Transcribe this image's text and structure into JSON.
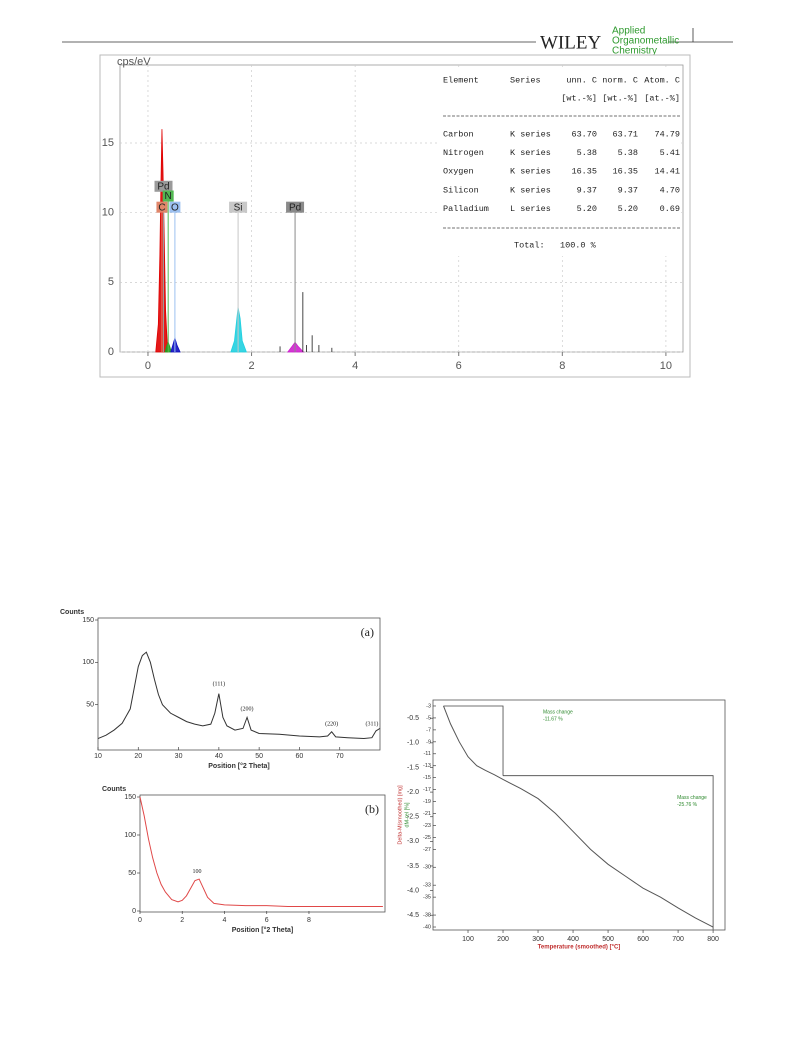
{
  "header": {
    "publisher": "WILEY",
    "journal": [
      "Applied",
      "Organometallic",
      "Chemistry"
    ]
  },
  "chart_data": [
    {
      "type": "spectrum",
      "ylabel": "cps/eV",
      "xlim": [
        -0.54,
        10.33
      ],
      "ylim": [
        0,
        20.6
      ],
      "xticks": [
        0,
        2,
        4,
        6,
        8,
        10
      ],
      "yticks": [
        0,
        5,
        10,
        15
      ],
      "grid": true,
      "series": [
        {
          "color": "#e00000",
          "x": [
            0.15,
            0.2,
            0.23,
            0.25,
            0.27,
            0.29,
            0.31,
            0.34,
            0.38
          ],
          "values": [
            0,
            2,
            7,
            12,
            16,
            13,
            9,
            3,
            0
          ]
        },
        {
          "color": "#1fa01f",
          "x": [
            0.33,
            0.36,
            0.39,
            0.42,
            0.45
          ],
          "values": [
            0,
            0.4,
            0.7,
            0.4,
            0
          ]
        },
        {
          "color": "#1010c0",
          "x": [
            0.44,
            0.48,
            0.52,
            0.56,
            0.62
          ],
          "values": [
            0,
            0.5,
            1,
            0.5,
            0
          ]
        },
        {
          "color": "#20d0e0",
          "x": [
            1.6,
            1.67,
            1.71,
            1.74,
            1.78,
            1.82,
            1.9
          ],
          "values": [
            0,
            0.8,
            2.2,
            3.2,
            2.4,
            0.8,
            0
          ]
        },
        {
          "color": "#d020d0",
          "x": [
            2.7,
            2.78,
            2.84,
            2.9,
            3.0
          ],
          "values": [
            0,
            0.4,
            0.7,
            0.4,
            0
          ]
        }
      ],
      "line_markers": [
        {
          "label": "Pd",
          "x": 0.3,
          "y": 11.5,
          "color": "#9a9a9a"
        },
        {
          "label": "N",
          "x": 0.39,
          "y": 10.8,
          "color": "#52b852"
        },
        {
          "label": "C",
          "x": 0.27,
          "y": 10,
          "color": "#e0866a"
        },
        {
          "label": "O",
          "x": 0.52,
          "y": 10,
          "color": "#9cc0f0"
        },
        {
          "label": "Si",
          "x": 1.74,
          "y": 10,
          "color": "#c8c8c8"
        },
        {
          "label": "Pd",
          "x": 2.84,
          "y": 10,
          "color": "#8a8a8a"
        }
      ],
      "spikes": {
        "x": [
          2.55,
          2.99,
          3.06,
          3.17,
          3.3,
          3.55
        ],
        "values": [
          0.4,
          4.3,
          0.5,
          1.2,
          0.5,
          0.3
        ]
      },
      "table": {
        "header": [
          "Element",
          "Series",
          "unn. C",
          "norm. C",
          "Atom. C"
        ],
        "units": [
          "[wt.-%]",
          "[wt.-%]",
          "[at.-%]"
        ],
        "rows": [
          [
            "Carbon",
            "K series",
            "63.70",
            "63.71",
            "74.79"
          ],
          [
            "Nitrogen",
            "K series",
            "5.38",
            "5.38",
            "5.41"
          ],
          [
            "Oxygen",
            "K series",
            "16.35",
            "16.35",
            "14.41"
          ],
          [
            "Silicon",
            "K series",
            "9.37",
            "9.37",
            "4.70"
          ],
          [
            "Palladium",
            "L series",
            "5.20",
            "5.20",
            "0.69"
          ]
        ],
        "total_label": "Total:",
        "total": "100.0 %"
      }
    },
    {
      "type": "line",
      "panel": "(a)",
      "ylabel": "Counts",
      "xlabel": "Position [°2 Theta]",
      "xlim": [
        10,
        80
      ],
      "ylim": [
        0,
        150
      ],
      "xticks": [
        10,
        20,
        30,
        40,
        50,
        60,
        70
      ],
      "yticks": [
        50,
        100,
        150
      ],
      "color": "#333333",
      "x": [
        10,
        12,
        14,
        16,
        18,
        19,
        20,
        21,
        22,
        23,
        24,
        25,
        26,
        28,
        30,
        32,
        34,
        36,
        38,
        39,
        40,
        41,
        42,
        44,
        46,
        47,
        48,
        50,
        55,
        60,
        65,
        67,
        68,
        69,
        72,
        76,
        78,
        79,
        80
      ],
      "values": [
        10,
        14,
        20,
        28,
        45,
        70,
        95,
        108,
        112,
        100,
        80,
        62,
        50,
        40,
        35,
        30,
        27,
        25,
        27,
        40,
        63,
        35,
        25,
        20,
        22,
        35,
        20,
        16,
        15,
        13,
        12,
        13,
        18,
        12,
        11,
        10,
        11,
        19,
        22
      ],
      "annotations": [
        {
          "label": "(111)",
          "x": 40,
          "y": 74
        },
        {
          "label": "(200)",
          "x": 47,
          "y": 45
        },
        {
          "label": "(220)",
          "x": 68,
          "y": 27
        },
        {
          "label": "(311)",
          "x": 78,
          "y": 27
        }
      ]
    },
    {
      "type": "line",
      "panel": "(b)",
      "ylabel": "Counts",
      "xlabel": "Position [°2 Theta]",
      "xlim": [
        0,
        11.6
      ],
      "ylim": [
        0,
        150
      ],
      "xticks": [
        0,
        2,
        4,
        6,
        8
      ],
      "yticks": [
        0,
        50,
        100,
        150
      ],
      "color": "#e04848",
      "x": [
        0,
        0.2,
        0.4,
        0.6,
        0.8,
        1,
        1.2,
        1.5,
        1.8,
        2,
        2.2,
        2.4,
        2.6,
        2.8,
        3,
        3.2,
        3.5,
        4,
        5,
        6,
        7,
        8,
        9,
        10,
        11.5
      ],
      "values": [
        150,
        125,
        95,
        70,
        50,
        35,
        25,
        15,
        12,
        14,
        20,
        30,
        40,
        42,
        30,
        18,
        10,
        8,
        7,
        7,
        6,
        6,
        6,
        6,
        6
      ],
      "annotations": [
        {
          "label": "100",
          "x": 2.7,
          "y": 52
        }
      ]
    },
    {
      "type": "line",
      "ylabel": "Delta-M(smoothed) [mg]",
      "y2label": "dM-rel [%]",
      "xlabel": "Temperature (smoothed) [°C]",
      "xlim": [
        0,
        834
      ],
      "ylim": [
        -4.8,
        -0.13
      ],
      "y2lim": [
        -40.5,
        -2
      ],
      "xticks": [
        100,
        200,
        300,
        400,
        500,
        600,
        700,
        800
      ],
      "yticks": [
        -0.5,
        {
          "value": -1,
          "label": "-1.0"
        },
        -1.5,
        {
          "value": -2,
          "label": "-2.0"
        },
        -2.5,
        {
          "value": -3,
          "label": "-3.0"
        },
        -3.5,
        {
          "value": -4,
          "label": "-4.0"
        },
        -4.5
      ],
      "y2ticks": [
        -3,
        -5,
        -7,
        -9,
        -11,
        -13,
        -15,
        -17,
        -19,
        -21,
        -23,
        -25,
        -27,
        -30,
        -33,
        -35,
        -38,
        -40
      ],
      "series": [
        {
          "color": "#555555",
          "axis": "y2",
          "x": [
            30,
            50,
            75,
            100,
            125,
            150,
            175,
            200,
            250,
            300,
            350,
            400,
            450,
            500,
            550,
            600,
            650,
            700,
            750,
            800
          ],
          "values": [
            -3,
            -6,
            -9,
            -11.5,
            -13,
            -13.8,
            -14.5,
            -15.3,
            -16.8,
            -18.5,
            -21,
            -24,
            -27,
            -29.5,
            -31.5,
            -33.5,
            -35,
            -36.8,
            -38.5,
            -40
          ]
        }
      ],
      "steps": [
        {
          "label": "Mass change",
          "from": 30,
          "to": 200,
          "start": -3,
          "end": -14.67,
          "value": -11.67,
          "value_label": "-11.67 %"
        },
        {
          "label": "Mass change",
          "from": 200,
          "to": 800,
          "start": -14.67,
          "end": -40.43,
          "value": -25.76,
          "value_label": "-25.76 %"
        }
      ]
    }
  ]
}
